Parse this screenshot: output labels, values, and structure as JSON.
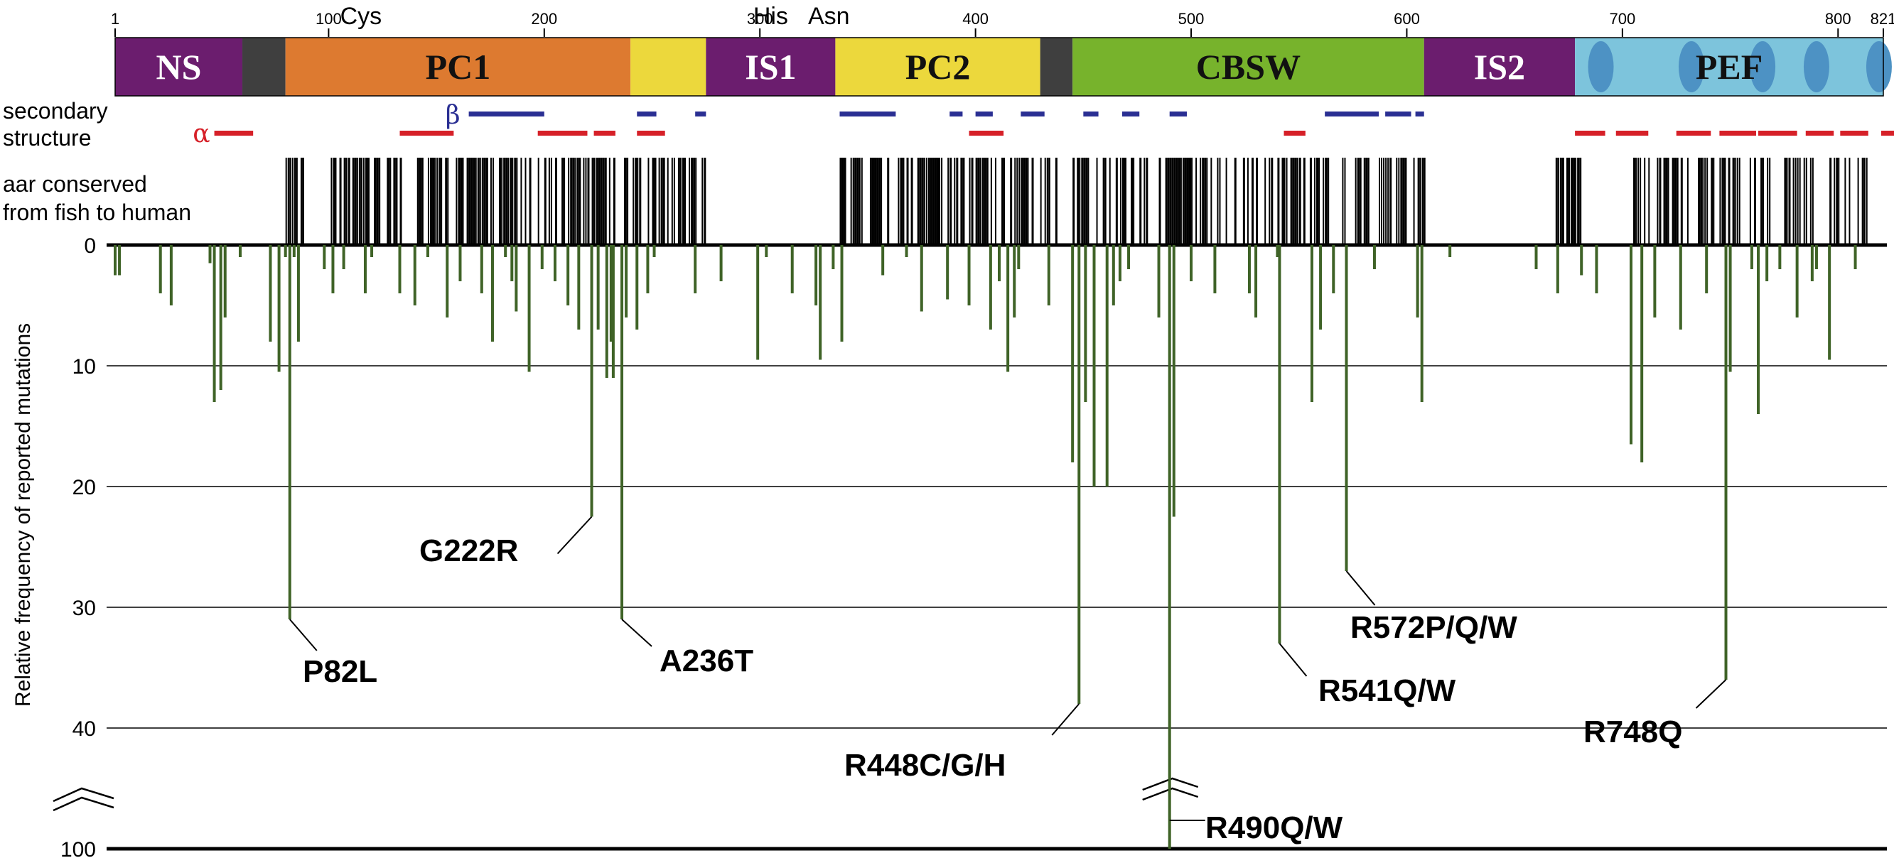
{
  "chart_data": {
    "type": "bar",
    "residue_range": [
      1,
      821
    ],
    "residue_ticks": [
      "1",
      "100",
      "200",
      "300",
      "400",
      "500",
      "600",
      "700",
      "800",
      "821"
    ],
    "residue_tick_values": [
      1,
      100,
      200,
      300,
      400,
      500,
      600,
      700,
      800,
      821
    ],
    "residue_marks": [
      {
        "label": "Cys",
        "residue": 115
      },
      {
        "label": "His",
        "residue": 305
      },
      {
        "label": "Asn",
        "residue": 332
      }
    ],
    "domains": [
      {
        "name": "NS",
        "start": 1,
        "end": 60,
        "color": "#6b1d6e"
      },
      {
        "name": "",
        "start": 60,
        "end": 80,
        "color": "#3f3f3f"
      },
      {
        "name": "PC1",
        "start": 80,
        "end": 240,
        "color": "#dd7a30"
      },
      {
        "name": "",
        "start": 240,
        "end": 275,
        "color": "#ecd83c"
      },
      {
        "name": "IS1",
        "start": 275,
        "end": 335,
        "color": "#6b1d6e"
      },
      {
        "name": "PC2",
        "start": 335,
        "end": 430,
        "color": "#ecd83c"
      },
      {
        "name": "",
        "start": 430,
        "end": 445,
        "color": "#3f3f3f"
      },
      {
        "name": "CBSW",
        "start": 445,
        "end": 608,
        "color": "#77b32c"
      },
      {
        "name": "IS2",
        "start": 608,
        "end": 678,
        "color": "#6b1d6e"
      },
      {
        "name": "PEF",
        "start": 678,
        "end": 821,
        "color": "#7dc4dc"
      }
    ],
    "ef_hands": [
      690,
      732,
      765,
      790,
      819
    ],
    "row_labels": {
      "secondary": [
        "secondary",
        "structure"
      ],
      "conserved": [
        "aar conserved",
        "from fish to human"
      ]
    },
    "secondary_structure": {
      "beta_symbol": "β",
      "alpha_symbol": "α",
      "beta_color": "#2a2f93",
      "alpha_color": "#d62028",
      "beta": [
        [
          165,
          200
        ],
        [
          243,
          252
        ],
        [
          270,
          275
        ],
        [
          337,
          363
        ],
        [
          388,
          394
        ],
        [
          400,
          408
        ],
        [
          421,
          432
        ],
        [
          450,
          457
        ],
        [
          468,
          476
        ],
        [
          490,
          498
        ],
        [
          562,
          587
        ],
        [
          590,
          602
        ],
        [
          604,
          608
        ]
      ],
      "alpha": [
        [
          47,
          65
        ],
        [
          133,
          158
        ],
        [
          197,
          220
        ],
        [
          223,
          233
        ],
        [
          243,
          256
        ],
        [
          397,
          408
        ],
        [
          404,
          413
        ],
        [
          543,
          553
        ],
        [
          678,
          692
        ],
        [
          697,
          712
        ],
        [
          725,
          741
        ],
        [
          745,
          762
        ],
        [
          763,
          781
        ],
        [
          785,
          798
        ],
        [
          801,
          814
        ],
        [
          820,
          828
        ]
      ]
    },
    "conserved_regions": [
      [
        80,
        88
      ],
      [
        101,
        130
      ],
      [
        131,
        232
      ],
      [
        237,
        274
      ],
      [
        336,
        347
      ],
      [
        350,
        382
      ],
      [
        383,
        394
      ],
      [
        395,
        427
      ],
      [
        430,
        437
      ],
      [
        445,
        499
      ],
      [
        500,
        563
      ],
      [
        566,
        609
      ],
      [
        669,
        681
      ],
      [
        705,
        709
      ],
      [
        710,
        730
      ],
      [
        734,
        768
      ],
      [
        775,
        788
      ],
      [
        796,
        813
      ]
    ],
    "ylabel": "Relative frequency of reported mutations",
    "y_ticks": [
      "0",
      "10",
      "20",
      "30",
      "40",
      "100"
    ],
    "y_tick_values": [
      0,
      10,
      20,
      30,
      40,
      100
    ],
    "y_break_after": 40,
    "bar_color": "#3f6327",
    "mutation_freq": [
      [
        1,
        2.5
      ],
      [
        3,
        2.5
      ],
      [
        22,
        4
      ],
      [
        27,
        5
      ],
      [
        45,
        1.5
      ],
      [
        47,
        13
      ],
      [
        50,
        12
      ],
      [
        52,
        6
      ],
      [
        59,
        1
      ],
      [
        73,
        8
      ],
      [
        77,
        10.5
      ],
      [
        80,
        1
      ],
      [
        82,
        31
      ],
      [
        84,
        1
      ],
      [
        86,
        8
      ],
      [
        98,
        2
      ],
      [
        102,
        4
      ],
      [
        107,
        2
      ],
      [
        117,
        4
      ],
      [
        120,
        1
      ],
      [
        133,
        4
      ],
      [
        140,
        5
      ],
      [
        146,
        1
      ],
      [
        155,
        6
      ],
      [
        161,
        3
      ],
      [
        171,
        4
      ],
      [
        176,
        8
      ],
      [
        182,
        1
      ],
      [
        185,
        3
      ],
      [
        187,
        5.5
      ],
      [
        193,
        10.5
      ],
      [
        199,
        2
      ],
      [
        205,
        3
      ],
      [
        211,
        5
      ],
      [
        216,
        7
      ],
      [
        222,
        22.5
      ],
      [
        225,
        7
      ],
      [
        229,
        11
      ],
      [
        231,
        8
      ],
      [
        232,
        11
      ],
      [
        236,
        31
      ],
      [
        238,
        6
      ],
      [
        243,
        7
      ],
      [
        248,
        4
      ],
      [
        251,
        1
      ],
      [
        270,
        4
      ],
      [
        282,
        3
      ],
      [
        299,
        9.5
      ],
      [
        303,
        1
      ],
      [
        315,
        4
      ],
      [
        326,
        5
      ],
      [
        328,
        9.5
      ],
      [
        334,
        2
      ],
      [
        338,
        8
      ],
      [
        357,
        2.5
      ],
      [
        368,
        1
      ],
      [
        375,
        5.5
      ],
      [
        387,
        4.5
      ],
      [
        397,
        5
      ],
      [
        407,
        7
      ],
      [
        411,
        3
      ],
      [
        415,
        10.5
      ],
      [
        418,
        6
      ],
      [
        420,
        2
      ],
      [
        434,
        5
      ],
      [
        445,
        18
      ],
      [
        448,
        38
      ],
      [
        451,
        13
      ],
      [
        455,
        20
      ],
      [
        461,
        20
      ],
      [
        464,
        5
      ],
      [
        467,
        3
      ],
      [
        471,
        2
      ],
      [
        485,
        6
      ],
      [
        490,
        100
      ],
      [
        492,
        22.5
      ],
      [
        500,
        3
      ],
      [
        511,
        4
      ],
      [
        527,
        4
      ],
      [
        530,
        6
      ],
      [
        540,
        1
      ],
      [
        541,
        33
      ],
      [
        556,
        13
      ],
      [
        560,
        7
      ],
      [
        566,
        4
      ],
      [
        572,
        27
      ],
      [
        585,
        2
      ],
      [
        605,
        6
      ],
      [
        607,
        13
      ],
      [
        620,
        1
      ],
      [
        660,
        2
      ],
      [
        670,
        4
      ],
      [
        681,
        2.5
      ],
      [
        688,
        4
      ],
      [
        704,
        16.5
      ],
      [
        709,
        18
      ],
      [
        715,
        6
      ],
      [
        727,
        7
      ],
      [
        739,
        4
      ],
      [
        748,
        36
      ],
      [
        750,
        10.5
      ],
      [
        760,
        2
      ],
      [
        763,
        14
      ],
      [
        767,
        3
      ],
      [
        773,
        2
      ],
      [
        781,
        6
      ],
      [
        788,
        3
      ],
      [
        790,
        2
      ],
      [
        796,
        9.5
      ],
      [
        808,
        2
      ]
    ],
    "annotations": [
      {
        "label": "P82L",
        "residue": 82,
        "value": 31
      },
      {
        "label": "G222R",
        "residue": 222,
        "value": 22.5
      },
      {
        "label": "A236T",
        "residue": 236,
        "value": 31
      },
      {
        "label": "R448C/G/H",
        "residue": 448,
        "value": 38
      },
      {
        "label": "R490Q/W",
        "residue": 490,
        "value": 100
      },
      {
        "label": "R541Q/W",
        "residue": 541,
        "value": 33
      },
      {
        "label": "R572P/Q/W",
        "residue": 572,
        "value": 27
      },
      {
        "label": "R748Q",
        "residue": 748,
        "value": 36
      }
    ]
  }
}
